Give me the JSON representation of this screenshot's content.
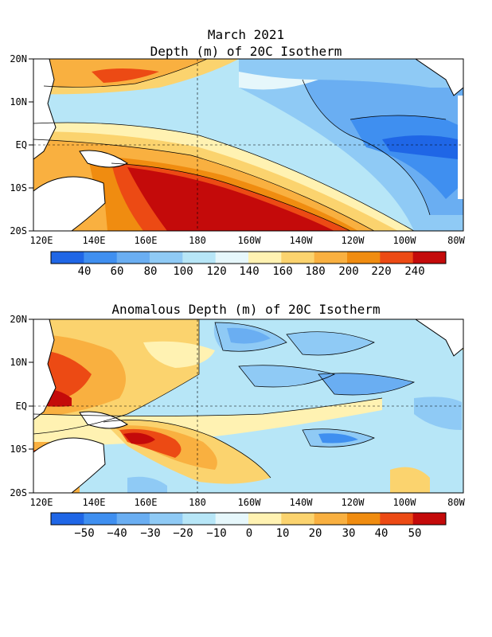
{
  "title": {
    "line1": "March 2021",
    "line2": "Depth (m) of 20C Isotherm"
  },
  "panel2_title": "Anomalous Depth (m) of 20C Isotherm",
  "lat_ticks": [
    "20N",
    "10N",
    "EQ",
    "10S",
    "20S"
  ],
  "lon_ticks": [
    "120E",
    "140E",
    "160E",
    "180",
    "160W",
    "140W",
    "120W",
    "100W",
    "80W"
  ],
  "colorbar1": {
    "colors": [
      "#1f66e6",
      "#3f8ff0",
      "#6aaef2",
      "#8fcaf5",
      "#b7e6f7",
      "#e6f7fb",
      "#fff2b2",
      "#fbd36e",
      "#f9b040",
      "#f08c10",
      "#ec4a14",
      "#c40a0a"
    ],
    "labels": [
      "40",
      "60",
      "80",
      "100",
      "120",
      "140",
      "160",
      "180",
      "200",
      "220",
      "240"
    ]
  },
  "colorbar2": {
    "colors": [
      "#1f66e6",
      "#3f8ff0",
      "#6aaef2",
      "#8fcaf5",
      "#b7e6f7",
      "#e6f7fb",
      "#fff2b2",
      "#fbd36e",
      "#f9b040",
      "#f08c10",
      "#ec4a14",
      "#c40a0a"
    ],
    "labels": [
      "−50",
      "−40",
      "−30",
      "−20",
      "−10",
      "0",
      "10",
      "20",
      "30",
      "40",
      "50"
    ]
  },
  "colors": {
    "warm_dark": "#c40a0a",
    "warm": "#f08c10",
    "warm_light": "#fbd36e",
    "cool_dark": "#1f66e6",
    "cool": "#6aaef2",
    "cool_light": "#b7e6f7",
    "land": "#ffffff"
  }
}
